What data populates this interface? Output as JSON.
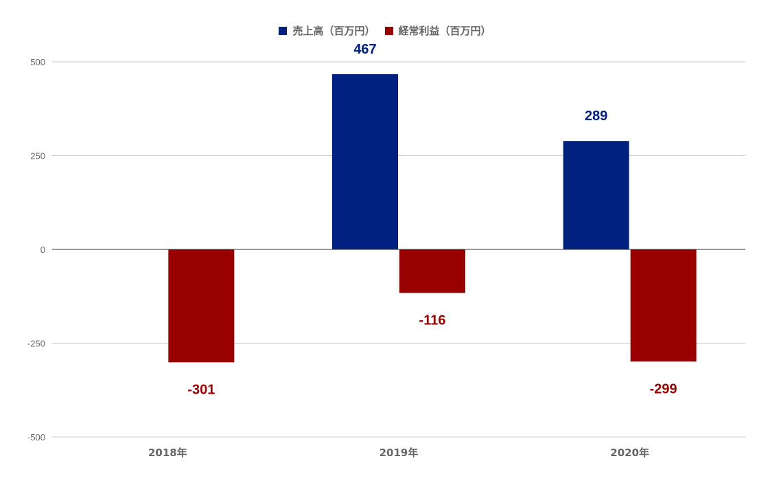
{
  "chart_data": {
    "type": "bar",
    "title": "",
    "xlabel": "",
    "ylabel": "",
    "categories": [
      "2018年",
      "2019年",
      "2020年"
    ],
    "series": [
      {
        "name": "売上高（百万円）",
        "color": "#002080",
        "values": [
          null,
          467,
          289
        ]
      },
      {
        "name": "経常利益（百万円）",
        "color": "#990000",
        "values": [
          -301,
          -116,
          -299
        ]
      }
    ],
    "data_labels": {
      "売上高（百万円）": [
        "",
        "467",
        "289"
      ],
      "経常利益（百万円）": [
        "-301",
        "-116",
        "-299"
      ]
    },
    "ylim": [
      -500,
      500
    ],
    "yticks": [
      -500,
      -250,
      0,
      250,
      500
    ],
    "ytick_labels": [
      "-500",
      "-250",
      "0",
      "250",
      "500"
    ],
    "grid": true,
    "legend_position": "top-center",
    "colors": {
      "gridline": "#cccccc",
      "zero_line": "#333333",
      "tick_text": "#666666"
    }
  }
}
